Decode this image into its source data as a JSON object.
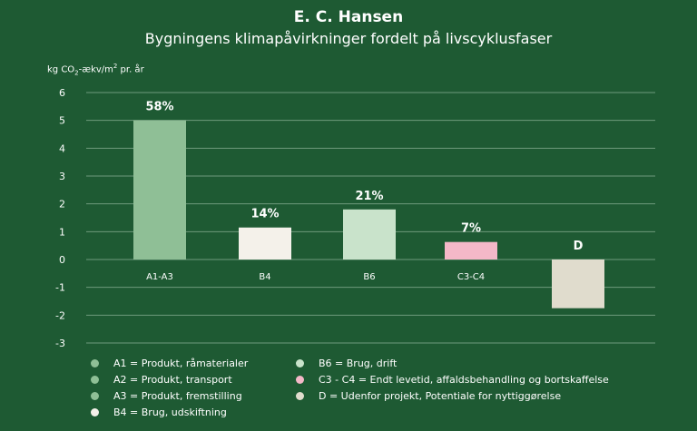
{
  "chart_data": {
    "type": "bar",
    "title": "E. C. Hansen",
    "subtitle": "Bygningens klimapåvirkninger fordelt på livscyklusfaser",
    "ylabel": {
      "prefix": "kg CO",
      "sub": "2",
      "middle": "-ækv/m",
      "sup": "2",
      "suffix": " pr. år"
    },
    "ylim": [
      -3,
      6
    ],
    "yticks": [
      6,
      5,
      4,
      3,
      2,
      1,
      0,
      -1,
      -2,
      -3
    ],
    "grid": true,
    "categories": [
      "A1-A3",
      "B4",
      "B6",
      "C3-C4",
      ""
    ],
    "values": [
      5.0,
      1.15,
      1.8,
      0.63,
      -1.75
    ],
    "data_labels": [
      "58%",
      "14%",
      "21%",
      "7%",
      "D"
    ],
    "colors": [
      "#8fbf96",
      "#f4f1ea",
      "#c9e3cb",
      "#f4b8c8",
      "#e0dccd"
    ],
    "legend_position": "bottom",
    "legend": [
      [
        {
          "label": "A1 = Produkt, råmaterialer",
          "color": "#8fbf96"
        },
        {
          "label": "A2 = Produkt, transport",
          "color": "#8fbf96"
        },
        {
          "label": "A3 = Produkt, fremstilling",
          "color": "#8fbf96"
        },
        {
          "label": "B4 = Brug, udskiftning",
          "color": "#f4f1ea"
        }
      ],
      [
        {
          "label": "B6 = Brug, drift",
          "color": "#c9e3cb"
        },
        {
          "label": "C3 - C4 = Endt levetid, affaldsbehandling og bortskaffelse",
          "color": "#f4b8c8"
        },
        {
          "label": "D = Udenfor projekt, Potentiale for nyttiggørelse",
          "color": "#e0dccd"
        }
      ]
    ]
  }
}
